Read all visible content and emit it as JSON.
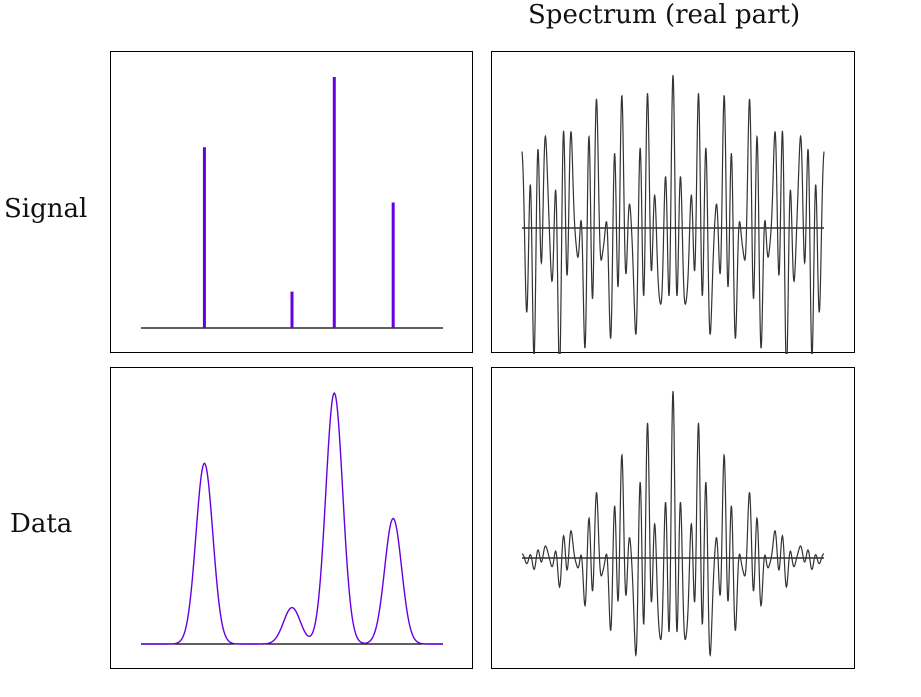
{
  "labels": {
    "column_title": "Spectrum (real part)",
    "row_signal": "Signal",
    "row_data": "Data"
  },
  "colors": {
    "signal": "#6600e0",
    "spectrum": "#333333",
    "baseline": "#000000"
  },
  "chart_data": [
    {
      "type": "bar",
      "name_ref": "signal-panel",
      "x": [
        0.21,
        0.5,
        0.64,
        0.835
      ],
      "values": [
        0.72,
        0.145,
        1.0,
        0.5
      ],
      "xlim": [
        0,
        1
      ],
      "ylim": [
        0,
        1
      ]
    },
    {
      "type": "line",
      "name_ref": "data-panel",
      "components": [
        {
          "center": 0.21,
          "amplitude": 0.72,
          "width": 0.028
        },
        {
          "center": 0.5,
          "amplitude": 0.145,
          "width": 0.028
        },
        {
          "center": 0.64,
          "amplitude": 1.0,
          "width": 0.028
        },
        {
          "center": 0.835,
          "amplitude": 0.5,
          "width": 0.028
        }
      ],
      "xlim": [
        0,
        1
      ],
      "ylim": [
        0,
        1
      ]
    },
    {
      "type": "line",
      "name_ref": "spectrum-signal-panel",
      "frequencies": [
        0.21,
        0.5,
        0.64,
        0.835
      ],
      "amplitudes": [
        0.72,
        0.145,
        1.0,
        0.5
      ],
      "damping": 0,
      "ylim": [
        -1,
        1
      ]
    },
    {
      "type": "line",
      "name_ref": "spectrum-data-panel",
      "frequencies": [
        0.21,
        0.5,
        0.64,
        0.835
      ],
      "amplitudes": [
        0.72,
        0.145,
        1.0,
        0.5
      ],
      "damping": 0.028,
      "ylim": [
        -1,
        1
      ]
    }
  ]
}
